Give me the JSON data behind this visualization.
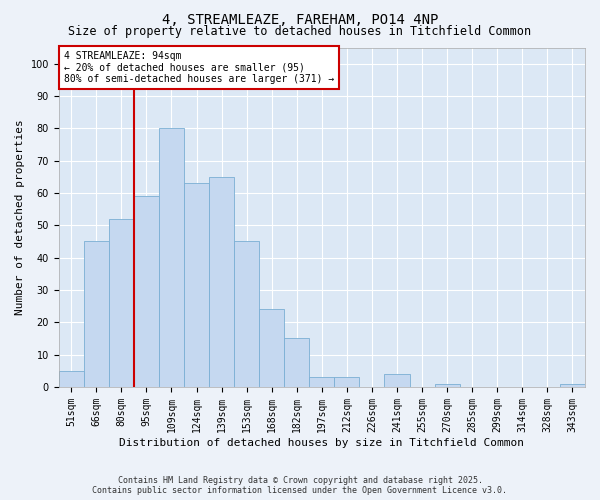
{
  "title": "4, STREAMLEAZE, FAREHAM, PO14 4NP",
  "subtitle": "Size of property relative to detached houses in Titchfield Common",
  "xlabel": "Distribution of detached houses by size in Titchfield Common",
  "ylabel": "Number of detached properties",
  "categories": [
    "51sqm",
    "66sqm",
    "80sqm",
    "95sqm",
    "109sqm",
    "124sqm",
    "139sqm",
    "153sqm",
    "168sqm",
    "182sqm",
    "197sqm",
    "212sqm",
    "226sqm",
    "241sqm",
    "255sqm",
    "270sqm",
    "285sqm",
    "299sqm",
    "314sqm",
    "328sqm",
    "343sqm"
  ],
  "values": [
    5,
    45,
    52,
    59,
    80,
    63,
    65,
    45,
    24,
    15,
    3,
    3,
    0,
    4,
    0,
    1,
    0,
    0,
    0,
    0,
    1
  ],
  "bar_color": "#c5d8f0",
  "bar_edge_color": "#7aafd4",
  "vline_x": 2.5,
  "vline_color": "#cc0000",
  "annotation_text": "4 STREAMLEAZE: 94sqm\n← 20% of detached houses are smaller (95)\n80% of semi-detached houses are larger (371) →",
  "annotation_box_facecolor": "#ffffff",
  "annotation_box_edgecolor": "#cc0000",
  "ylim": [
    0,
    105
  ],
  "yticks": [
    0,
    10,
    20,
    30,
    40,
    50,
    60,
    70,
    80,
    90,
    100
  ],
  "background_color": "#edf2f9",
  "plot_bg_color": "#dce8f5",
  "grid_color": "#ffffff",
  "footer_line1": "Contains HM Land Registry data © Crown copyright and database right 2025.",
  "footer_line2": "Contains public sector information licensed under the Open Government Licence v3.0.",
  "title_fontsize": 10,
  "subtitle_fontsize": 8.5,
  "xlabel_fontsize": 8,
  "ylabel_fontsize": 8,
  "tick_fontsize": 7,
  "annotation_fontsize": 7,
  "footer_fontsize": 6
}
